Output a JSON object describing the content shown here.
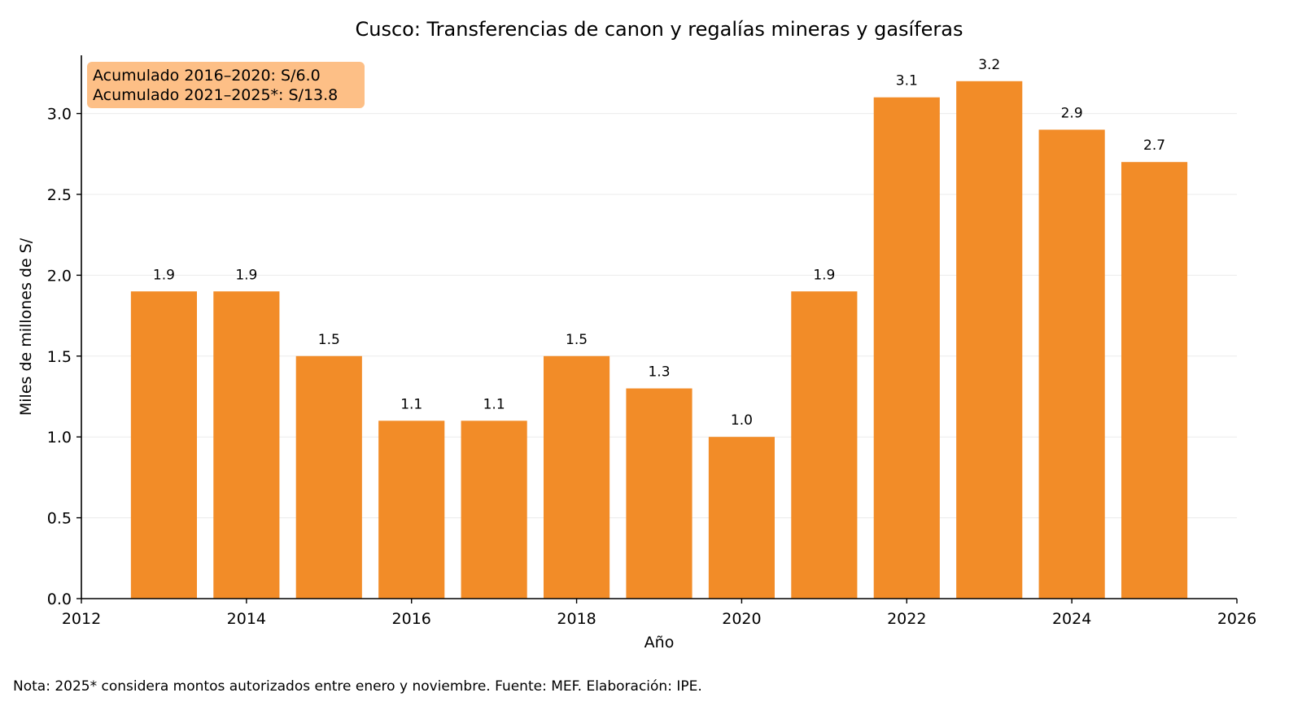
{
  "chart_data": {
    "type": "bar",
    "title": "Cusco: Transferencias de canon y regalías mineras y gasíferas",
    "xlabel": "Año",
    "ylabel": "Miles de millones de S/",
    "categories": [
      2013,
      2014,
      2015,
      2016,
      2017,
      2018,
      2019,
      2020,
      2021,
      2022,
      2023,
      2024,
      2025
    ],
    "values": [
      1.9,
      1.9,
      1.5,
      1.1,
      1.1,
      1.5,
      1.3,
      1.0,
      1.9,
      3.1,
      3.2,
      2.9,
      2.7
    ],
    "data_labels": [
      "1.9",
      "1.9",
      "1.5",
      "1.1",
      "1.1",
      "1.5",
      "1.3",
      "1.0",
      "1.9",
      "3.1",
      "3.2",
      "2.9",
      "2.7"
    ],
    "xlim": [
      2012,
      2026
    ],
    "ylim": [
      0,
      3.36
    ],
    "xticks": [
      "2012",
      "2014",
      "2016",
      "2018",
      "2020",
      "2022",
      "2024",
      "2026"
    ],
    "yticks": [
      "0.0",
      "0.5",
      "1.0",
      "1.5",
      "2.0",
      "2.5",
      "3.0"
    ],
    "grid": "horizontal",
    "bar_color": "#F28C28",
    "annotation": {
      "lines": [
        "Acumulado 2016–2020: S/6.0",
        "Acumulado 2021–2025*: S/13.8"
      ],
      "background": "#FDBF86",
      "placement": "top-left"
    }
  },
  "footnote": "Nota: 2025* considera montos autorizados entre enero y noviembre. Fuente: MEF. Elaboración: IPE."
}
